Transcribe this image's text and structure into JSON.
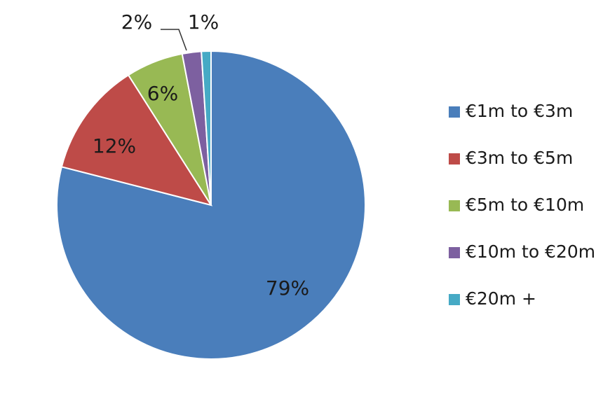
{
  "chart_data": {
    "type": "pie",
    "categories": [
      "€1m to €3m",
      "€3m to €5m",
      "€5m to €10m",
      "€10m to €20m",
      "€20m +"
    ],
    "values": [
      79,
      12,
      6,
      2,
      1
    ],
    "value_labels": [
      "79%",
      "12%",
      "6%",
      "2%",
      "1%"
    ],
    "colors": [
      "#4a7ebb",
      "#be4b48",
      "#98b954",
      "#7d60a0",
      "#46aac5"
    ],
    "legend": "right"
  }
}
